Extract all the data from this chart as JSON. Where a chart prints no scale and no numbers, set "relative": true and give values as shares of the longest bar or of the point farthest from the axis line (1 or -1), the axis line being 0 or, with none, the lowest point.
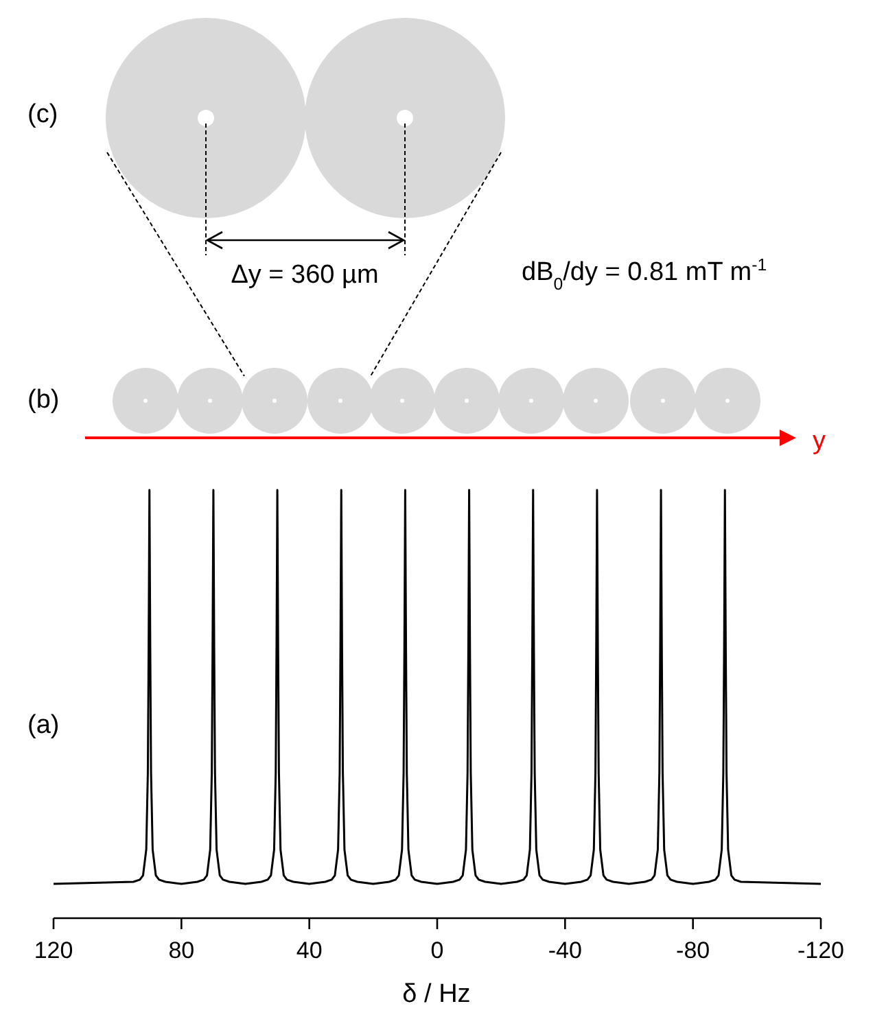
{
  "chart_data": {
    "type": "line",
    "relative": true,
    "xlabel": "δ / Hz",
    "xlim": [
      120,
      -120
    ],
    "xticks": [
      120,
      80,
      40,
      0,
      -40,
      -80,
      -120
    ],
    "x": [
      120,
      95,
      93,
      92,
      91,
      90.5,
      90.25,
      90,
      89.75,
      89.5,
      89,
      88,
      87,
      85,
      80,
      75,
      73,
      72,
      71,
      70.5,
      70.25,
      70,
      69.75,
      69.5,
      69,
      68,
      67,
      65,
      60,
      55,
      53,
      52,
      51,
      50.5,
      50.25,
      50,
      49.75,
      49.5,
      49,
      48,
      47,
      45,
      40,
      35,
      33,
      32,
      31,
      30.5,
      30.25,
      30,
      29.75,
      29.5,
      29,
      28,
      27,
      25,
      20,
      15,
      13,
      12,
      11,
      10.5,
      10.25,
      10,
      9.75,
      9.5,
      9,
      8,
      7,
      5,
      0,
      -5,
      -7,
      -8,
      -9,
      -9.5,
      -9.75,
      -10,
      -10.25,
      -10.5,
      -11,
      -12,
      -13,
      -15,
      -20,
      -25,
      -27,
      -28,
      -29,
      -29.5,
      -29.75,
      -30,
      -30.25,
      -30.5,
      -31,
      -32,
      -33,
      -35,
      -40,
      -45,
      -47,
      -48,
      -49,
      -49.5,
      -49.75,
      -50,
      -50.25,
      -50.5,
      -51,
      -52,
      -53,
      -55,
      -60,
      -65,
      -67,
      -68,
      -69,
      -69.5,
      -69.75,
      -70,
      -70.25,
      -70.5,
      -71,
      -72,
      -73,
      -75,
      -80,
      -85,
      -87,
      -88,
      -89,
      -89.5,
      -89.75,
      -90,
      -90.25,
      -90.5,
      -91,
      -92,
      -93,
      -95,
      -120
    ],
    "series": [
      {
        "color": "#000000",
        "values": [
          0.08,
          0.085,
          0.09,
          0.1,
          0.16,
          0.34,
          0.63,
          1,
          0.63,
          0.34,
          0.16,
          0.1,
          0.09,
          0.085,
          0.08,
          0.085,
          0.09,
          0.1,
          0.16,
          0.34,
          0.63,
          1,
          0.63,
          0.34,
          0.16,
          0.1,
          0.09,
          0.085,
          0.08,
          0.085,
          0.09,
          0.1,
          0.16,
          0.34,
          0.63,
          1,
          0.63,
          0.34,
          0.16,
          0.1,
          0.09,
          0.085,
          0.08,
          0.085,
          0.09,
          0.1,
          0.16,
          0.34,
          0.63,
          1,
          0.63,
          0.34,
          0.16,
          0.1,
          0.09,
          0.085,
          0.08,
          0.085,
          0.09,
          0.1,
          0.16,
          0.34,
          0.63,
          1,
          0.63,
          0.34,
          0.16,
          0.1,
          0.09,
          0.085,
          0.08,
          0.085,
          0.09,
          0.1,
          0.16,
          0.34,
          0.63,
          1,
          0.63,
          0.34,
          0.16,
          0.1,
          0.09,
          0.085,
          0.08,
          0.085,
          0.09,
          0.1,
          0.16,
          0.34,
          0.63,
          1,
          0.63,
          0.34,
          0.16,
          0.1,
          0.09,
          0.085,
          0.08,
          0.085,
          0.09,
          0.1,
          0.16,
          0.34,
          0.63,
          1,
          0.63,
          0.34,
          0.16,
          0.1,
          0.09,
          0.085,
          0.08,
          0.085,
          0.09,
          0.1,
          0.16,
          0.34,
          0.63,
          1,
          0.63,
          0.34,
          0.16,
          0.1,
          0.09,
          0.085,
          0.08,
          0.085,
          0.09,
          0.1,
          0.16,
          0.34,
          0.63,
          1,
          0.63,
          0.34,
          0.16,
          0.1,
          0.09,
          0.085,
          0.08
        ]
      }
    ],
    "annotations": [
      "(a)",
      "(b)",
      "(c)",
      "Δy = 360 µm",
      "dB$_{0}$/dy = 0.81 mT m$^{-1}$",
      "y"
    ]
  }
}
